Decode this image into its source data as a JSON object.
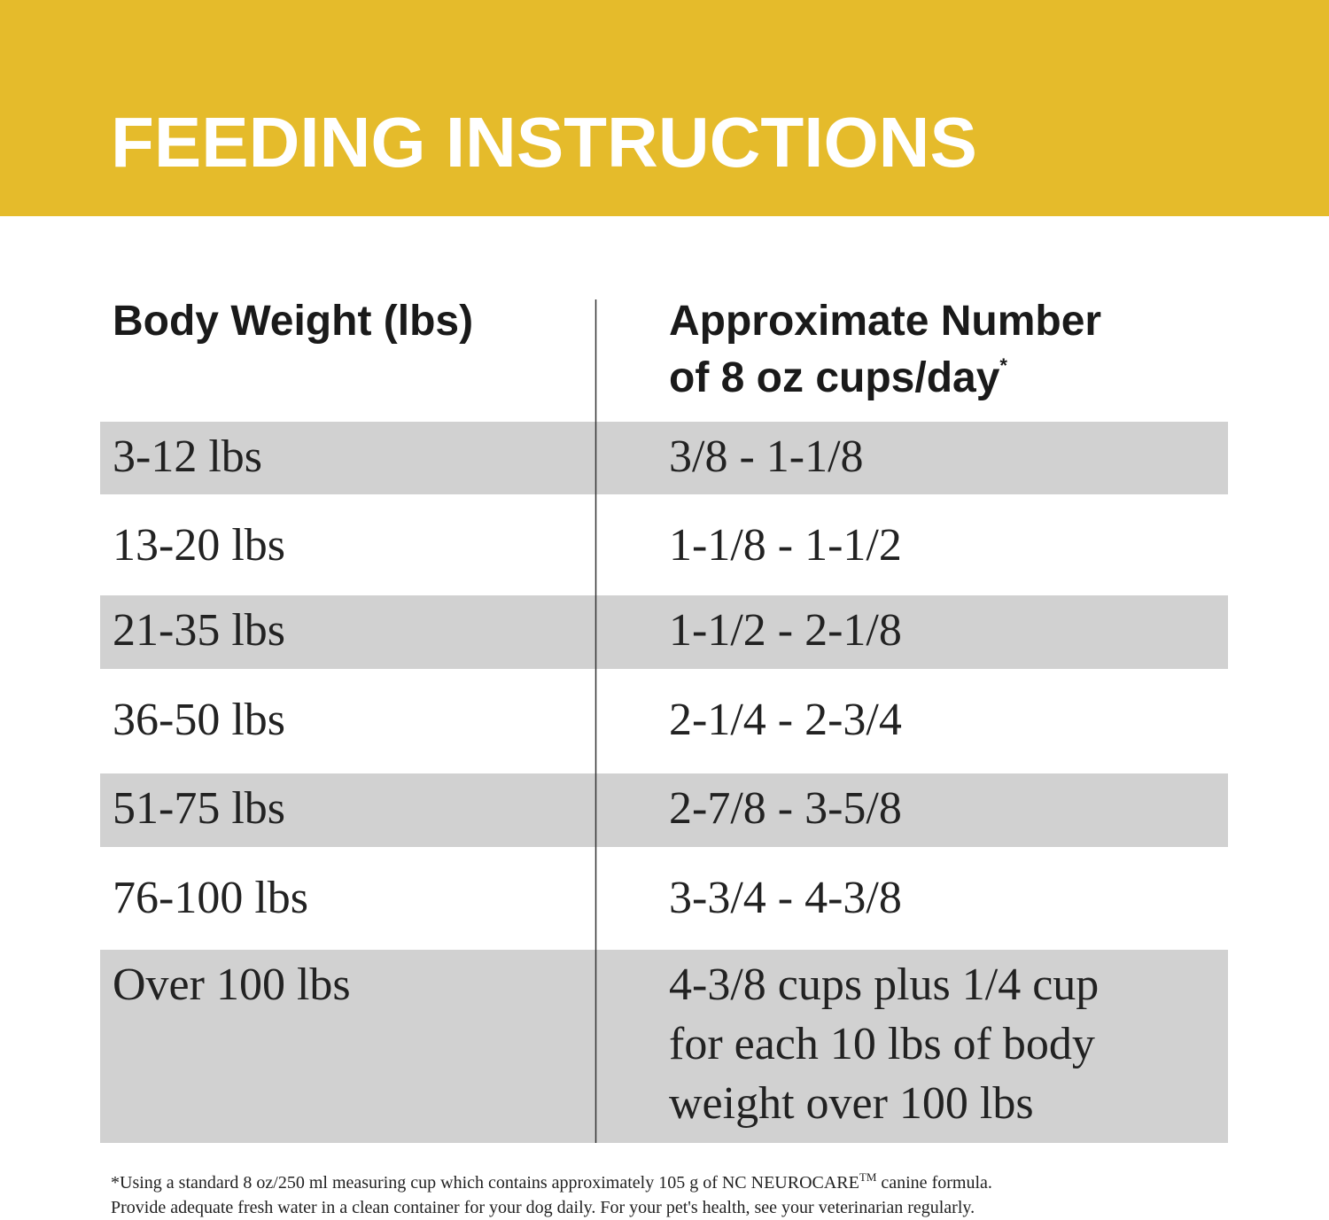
{
  "header": {
    "title": "FEEDING INSTRUCTIONS"
  },
  "table": {
    "columns": [
      [
        "Body Weight (lbs)"
      ],
      [
        "Approximate Number",
        "of 8 oz cups/day"
      ]
    ],
    "column_note": "*",
    "rows": [
      {
        "weight": "3-12 lbs",
        "cups": [
          "3/8 - 1-1/8"
        ]
      },
      {
        "weight": "13-20 lbs",
        "cups": [
          "1-1/8 - 1-1/2"
        ]
      },
      {
        "weight": "21-35 lbs",
        "cups": [
          "1-1/2 - 2-1/8"
        ]
      },
      {
        "weight": "36-50 lbs",
        "cups": [
          "2-1/4 - 2-3/4"
        ]
      },
      {
        "weight": "51-75 lbs",
        "cups": [
          "2-7/8 - 3-5/8"
        ]
      },
      {
        "weight": "76-100 lbs",
        "cups": [
          "3-3/4 - 4-3/8"
        ]
      },
      {
        "weight": "Over 100 lbs",
        "cups": [
          "4-3/8 cups plus 1/4 cup",
          "for each 10 lbs of body",
          "weight over 100 lbs"
        ]
      }
    ]
  },
  "footnote": {
    "line1_start": "*Using a standard 8 oz/250 ml measuring cup which contains approximately 105 g of NC NEUROCARE",
    "trademark": "TM",
    "line1_end": " canine formula.",
    "line2": "Provide adequate fresh water in a clean container for your dog daily. For your pet's health, see your veterinarian regularly."
  }
}
